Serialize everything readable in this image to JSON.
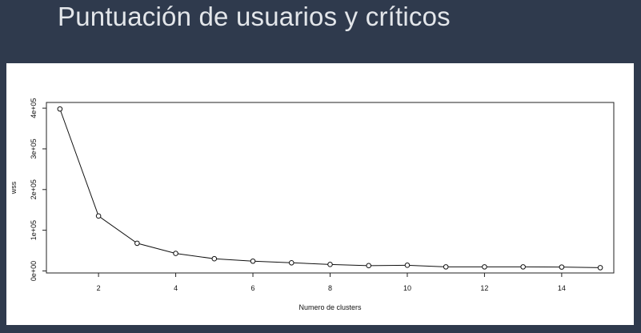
{
  "slide": {
    "title": "Puntuación de usuarios y críticos"
  },
  "chart_data": {
    "type": "line",
    "title": "",
    "xlabel": "Numero de clusters",
    "ylabel": "wss",
    "xlim": [
      0.65,
      15.35
    ],
    "ylim": [
      -5000,
      414000
    ],
    "x_ticks": [
      2,
      4,
      6,
      8,
      10,
      12,
      14
    ],
    "x_tick_labels": [
      "2",
      "4",
      "6",
      "8",
      "10",
      "12",
      "14"
    ],
    "y_ticks": [
      0,
      100000,
      200000,
      300000,
      400000
    ],
    "y_tick_labels": [
      "0e+00",
      "1e+05",
      "2e+05",
      "3e+05",
      "4e+05"
    ],
    "markers": "open-circle",
    "grid": false,
    "series": [
      {
        "x": [
          1,
          2,
          3,
          4,
          5,
          6,
          7,
          8,
          9,
          10,
          11,
          12,
          13,
          14,
          15
        ],
        "values": [
          398000,
          135000,
          68000,
          43000,
          30000,
          24000,
          20000,
          16000,
          13000,
          14000,
          10000,
          10000,
          10000,
          9500,
          8000
        ]
      }
    ]
  }
}
